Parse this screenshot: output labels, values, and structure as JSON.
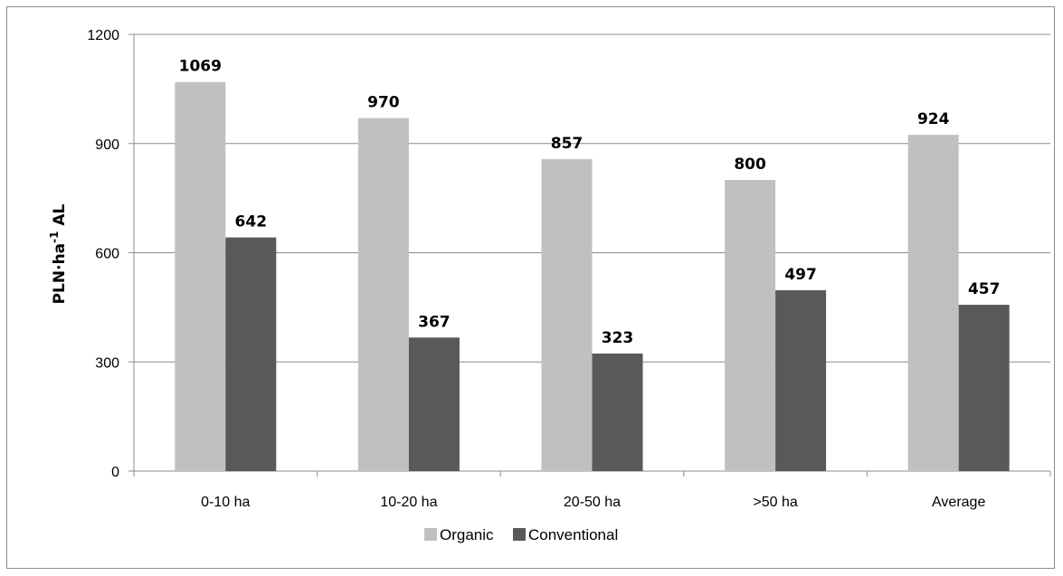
{
  "chart_data": {
    "type": "bar",
    "categories": [
      "0-10 ha",
      "10-20 ha",
      "20-50 ha",
      ">50 ha",
      "Average"
    ],
    "series": [
      {
        "name": "Organic",
        "values": [
          1069,
          970,
          857,
          800,
          924
        ],
        "color": "#c0c0c0"
      },
      {
        "name": "Conventional",
        "values": [
          642,
          367,
          323,
          497,
          457
        ],
        "color": "#595959"
      }
    ],
    "ylabel": {
      "main": "PLN·ha",
      "sup": "-1",
      "tail": " AL"
    },
    "ylim": [
      0,
      1200
    ],
    "yticks": [
      0,
      300,
      600,
      900,
      1200
    ],
    "grid": true,
    "legend_position": "bottom"
  }
}
